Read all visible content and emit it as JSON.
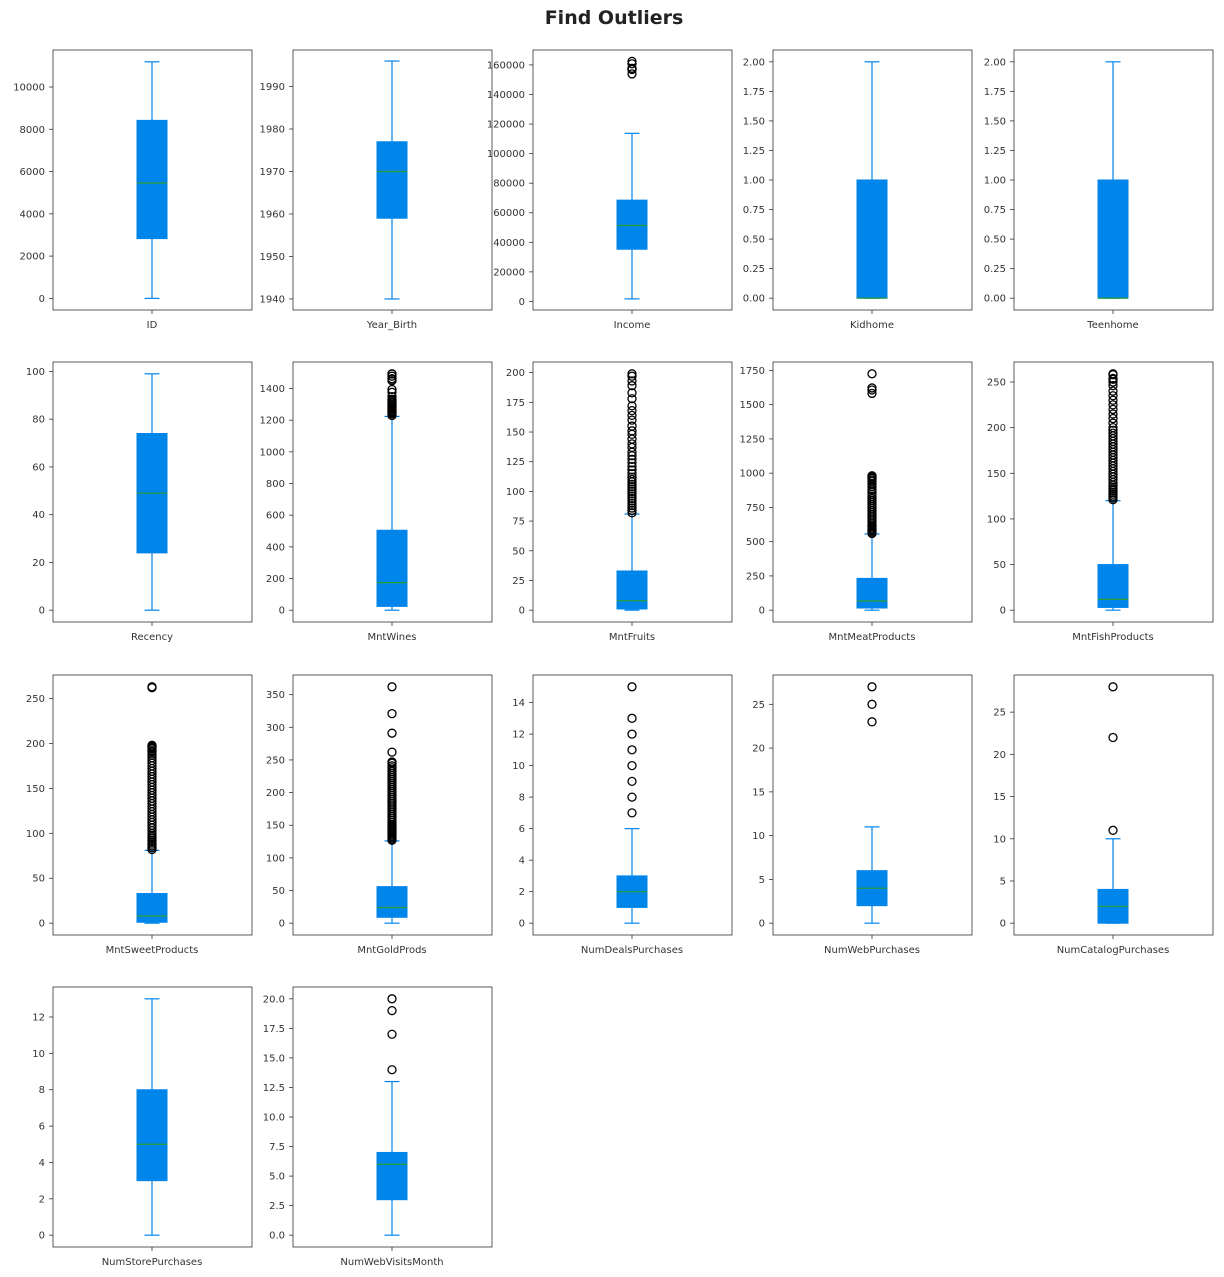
{
  "figure": {
    "title": "Find Outliers",
    "colors": {
      "box": "#0085eb",
      "whisker": "#0085eb",
      "median": "#2ca02c",
      "outlier": "#000000",
      "axes": "#333333"
    }
  },
  "chart_data": [
    {
      "type": "box",
      "xlabel": "ID",
      "ylim": [
        -550,
        11750
      ],
      "ticks": [
        0,
        2000,
        4000,
        6000,
        8000,
        10000
      ],
      "whisker_low": 0,
      "q1": 2828,
      "median": 5458,
      "q3": 8421,
      "whisker_high": 11191,
      "outliers": []
    },
    {
      "type": "box",
      "xlabel": "Year_Birth",
      "ylim": [
        1937.4,
        1998.6
      ],
      "ticks": [
        1940,
        1950,
        1960,
        1970,
        1980,
        1990
      ],
      "whisker_low": 1940,
      "q1": 1959,
      "median": 1970,
      "q3": 1977,
      "whisker_high": 1996,
      "outliers": []
    },
    {
      "type": "box",
      "xlabel": "Income",
      "ylim": [
        -5800,
        170100
      ],
      "ticks": [
        0,
        20000,
        40000,
        60000,
        80000,
        100000,
        120000,
        140000,
        160000
      ],
      "whisker_low": 1730,
      "q1": 35303,
      "median": 51382,
      "q3": 68522,
      "whisker_high": 113734,
      "outliers": [
        153924,
        156924,
        157146,
        157243,
        157733,
        160803,
        162397
      ]
    },
    {
      "type": "box",
      "xlabel": "Kidhome",
      "ylim": [
        -0.1,
        2.1
      ],
      "ticks": [
        0.0,
        0.25,
        0.5,
        0.75,
        1.0,
        1.25,
        1.5,
        1.75,
        2.0
      ],
      "tick_format": 2,
      "whisker_low": 0,
      "q1": 0,
      "median": 0,
      "q3": 1,
      "whisker_high": 2,
      "outliers": []
    },
    {
      "type": "box",
      "xlabel": "Teenhome",
      "ylim": [
        -0.1,
        2.1
      ],
      "ticks": [
        0.0,
        0.25,
        0.5,
        0.75,
        1.0,
        1.25,
        1.5,
        1.75,
        2.0
      ],
      "tick_format": 2,
      "whisker_low": 0,
      "q1": 0,
      "median": 0,
      "q3": 1,
      "whisker_high": 2,
      "outliers": []
    },
    {
      "type": "box",
      "xlabel": "Recency",
      "ylim": [
        -4.95,
        103.95
      ],
      "ticks": [
        0,
        20,
        40,
        60,
        80,
        100
      ],
      "whisker_low": 0,
      "q1": 24,
      "median": 49,
      "q3": 74,
      "whisker_high": 99,
      "outliers": []
    },
    {
      "type": "box",
      "xlabel": "MntWines",
      "ylim": [
        -74.5,
        1567.5
      ],
      "ticks": [
        0,
        200,
        400,
        600,
        800,
        1000,
        1200,
        1400
      ],
      "whisker_low": 0,
      "q1": 24,
      "median": 174,
      "q3": 505,
      "whisker_high": 1224,
      "outliers": [
        1230,
        1240,
        1245,
        1250,
        1253,
        1259,
        1262,
        1270,
        1276,
        1279,
        1285,
        1288,
        1296,
        1302,
        1311,
        1315,
        1324,
        1332,
        1349,
        1376,
        1394,
        1449,
        1459,
        1462,
        1478,
        1492,
        1493
      ]
    },
    {
      "type": "box",
      "xlabel": "MntFruits",
      "ylim": [
        -9.95,
        208.95
      ],
      "ticks": [
        0,
        25,
        50,
        75,
        100,
        125,
        150,
        175,
        200
      ],
      "whisker_low": 0,
      "q1": 1,
      "median": 8,
      "q3": 33,
      "whisker_high": 81,
      "outliers": [
        82,
        84,
        86,
        88,
        90,
        92,
        94,
        96,
        98,
        100,
        102,
        104,
        106,
        108,
        110,
        112,
        115,
        118,
        121,
        124,
        127,
        130,
        133,
        137,
        140,
        144,
        148,
        151,
        155,
        160,
        164,
        168,
        172,
        178,
        183,
        189,
        193,
        197,
        199
      ]
    },
    {
      "type": "box",
      "xlabel": "MntMeatProducts",
      "ylim": [
        -86.25,
        1811.25
      ],
      "ticks": [
        0,
        250,
        500,
        750,
        1000,
        1250,
        1500,
        1750
      ],
      "whisker_low": 0,
      "q1": 16,
      "median": 67,
      "q3": 232,
      "whisker_high": 556,
      "outliers": [
        560,
        570,
        580,
        590,
        600,
        610,
        620,
        635,
        650,
        665,
        680,
        695,
        710,
        725,
        740,
        755,
        770,
        785,
        800,
        815,
        830,
        845,
        860,
        880,
        900,
        915,
        925,
        940,
        950,
        961,
        968,
        974,
        981,
        1582,
        1607,
        1622,
        1725
      ]
    },
    {
      "type": "box",
      "xlabel": "MntFishProducts",
      "ylim": [
        -12.95,
        271.95
      ],
      "ticks": [
        0,
        50,
        100,
        150,
        200,
        250
      ],
      "whisker_low": 0,
      "q1": 3,
      "median": 12,
      "q3": 50,
      "whisker_high": 120,
      "outliers": [
        121,
        123,
        125,
        127,
        129,
        131,
        133,
        135,
        137,
        140,
        143,
        146,
        149,
        152,
        155,
        158,
        161,
        164,
        167,
        170,
        173,
        176,
        179,
        182,
        185,
        188,
        191,
        194,
        197,
        200,
        205,
        210,
        215,
        220,
        225,
        230,
        235,
        240,
        246,
        250,
        253,
        254,
        258,
        259
      ]
    },
    {
      "type": "box",
      "xlabel": "MntSweetProducts",
      "ylim": [
        -13.15,
        276.15
      ],
      "ticks": [
        0,
        50,
        100,
        150,
        200,
        250
      ],
      "whisker_low": 0,
      "q1": 1,
      "median": 8,
      "q3": 33,
      "whisker_high": 81,
      "outliers": [
        82,
        84,
        86,
        88,
        90,
        92,
        94,
        96,
        98,
        100,
        103,
        106,
        109,
        112,
        115,
        118,
        121,
        124,
        127,
        130,
        133,
        136,
        139,
        142,
        145,
        148,
        151,
        154,
        157,
        160,
        163,
        166,
        169,
        172,
        175,
        178,
        181,
        184,
        187,
        189,
        191,
        192,
        194,
        195,
        196,
        197,
        198,
        262,
        263
      ]
    },
    {
      "type": "box",
      "xlabel": "MntGoldProds",
      "ylim": [
        -18.1,
        380.1
      ],
      "ticks": [
        0,
        50,
        100,
        150,
        200,
        250,
        300,
        350
      ],
      "whisker_low": 0,
      "q1": 9,
      "median": 24,
      "q3": 56,
      "whisker_high": 126,
      "outliers": [
        127,
        129,
        131,
        133,
        135,
        137,
        139,
        141,
        143,
        145,
        147,
        149,
        151,
        154,
        157,
        160,
        163,
        166,
        169,
        172,
        175,
        178,
        181,
        184,
        187,
        190,
        193,
        196,
        199,
        202,
        205,
        208,
        211,
        214,
        217,
        220,
        223,
        226,
        229,
        232,
        235,
        238,
        241,
        245,
        247,
        262,
        291,
        321,
        362
      ]
    },
    {
      "type": "box",
      "xlabel": "NumDealsPurchases",
      "ylim": [
        -0.75,
        15.75
      ],
      "ticks": [
        0,
        2,
        4,
        6,
        8,
        10,
        12,
        14
      ],
      "whisker_low": 0,
      "q1": 1,
      "median": 2,
      "q3": 3,
      "whisker_high": 6,
      "outliers": [
        7,
        8,
        9,
        10,
        11,
        12,
        13,
        15
      ]
    },
    {
      "type": "box",
      "xlabel": "NumWebPurchases",
      "ylim": [
        -1.35,
        28.35
      ],
      "ticks": [
        0,
        5,
        10,
        15,
        20,
        25
      ],
      "whisker_low": 0,
      "q1": 2,
      "median": 4,
      "q3": 6,
      "whisker_high": 11,
      "outliers": [
        23,
        25,
        27
      ]
    },
    {
      "type": "box",
      "xlabel": "NumCatalogPurchases",
      "ylim": [
        -1.4,
        29.4
      ],
      "ticks": [
        0,
        5,
        10,
        15,
        20,
        25
      ],
      "whisker_low": 0,
      "q1": 0,
      "median": 2,
      "q3": 4,
      "whisker_high": 10,
      "outliers": [
        11,
        22,
        28
      ]
    },
    {
      "type": "box",
      "xlabel": "NumStorePurchases",
      "ylim": [
        -0.65,
        13.65
      ],
      "ticks": [
        0,
        2,
        4,
        6,
        8,
        10,
        12
      ],
      "whisker_low": 0,
      "q1": 3,
      "median": 5,
      "q3": 8,
      "whisker_high": 13,
      "outliers": []
    },
    {
      "type": "box",
      "xlabel": "NumWebVisitsMonth",
      "ylim": [
        -1.0,
        21.0
      ],
      "ticks": [
        0.0,
        2.5,
        5.0,
        7.5,
        10.0,
        12.5,
        15.0,
        17.5,
        20.0
      ],
      "tick_format": 1,
      "whisker_low": 0,
      "q1": 3,
      "median": 6,
      "q3": 7,
      "whisker_high": 13,
      "outliers": [
        14,
        17,
        19,
        20
      ]
    }
  ]
}
